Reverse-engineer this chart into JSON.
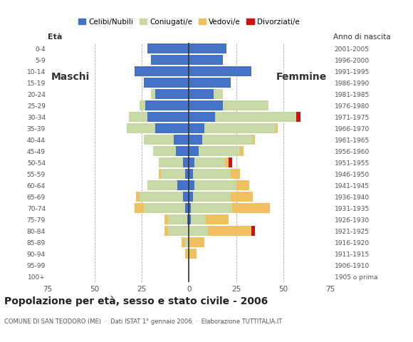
{
  "age_groups": [
    "100+",
    "95-99",
    "90-94",
    "85-89",
    "80-84",
    "75-79",
    "70-74",
    "65-69",
    "60-64",
    "55-59",
    "50-54",
    "45-49",
    "40-44",
    "35-39",
    "30-34",
    "25-29",
    "20-24",
    "15-19",
    "10-14",
    "5-9",
    "0-4"
  ],
  "birth_years": [
    "1905 o prima",
    "1906-1910",
    "1911-1915",
    "1916-1920",
    "1921-1925",
    "1926-1930",
    "1931-1935",
    "1936-1940",
    "1941-1945",
    "1946-1950",
    "1951-1955",
    "1956-1960",
    "1961-1965",
    "1966-1970",
    "1971-1975",
    "1976-1980",
    "1981-1985",
    "1986-1990",
    "1991-1995",
    "1996-2000",
    "2001-2005"
  ],
  "males_celibi": [
    0,
    0,
    0,
    0,
    0,
    1,
    2,
    3,
    6,
    2,
    3,
    7,
    8,
    18,
    22,
    23,
    18,
    24,
    29,
    20,
    22
  ],
  "males_coniugati": [
    0,
    0,
    1,
    2,
    11,
    10,
    22,
    23,
    16,
    13,
    13,
    12,
    16,
    15,
    10,
    3,
    2,
    0,
    0,
    0,
    0
  ],
  "males_vedovi": [
    0,
    0,
    1,
    2,
    2,
    2,
    5,
    2,
    0,
    1,
    0,
    0,
    0,
    0,
    0,
    0,
    0,
    0,
    0,
    0,
    0
  ],
  "males_divorziati": [
    0,
    0,
    0,
    0,
    0,
    0,
    0,
    0,
    0,
    0,
    0,
    0,
    0,
    0,
    0,
    0,
    0,
    0,
    0,
    0,
    0
  ],
  "females_nubili": [
    0,
    0,
    0,
    0,
    0,
    1,
    1,
    2,
    3,
    2,
    3,
    5,
    7,
    8,
    14,
    18,
    13,
    22,
    33,
    18,
    20
  ],
  "females_coniugate": [
    0,
    0,
    0,
    0,
    10,
    8,
    22,
    20,
    22,
    20,
    16,
    22,
    27,
    38,
    43,
    24,
    5,
    0,
    0,
    0,
    0
  ],
  "females_vedove": [
    0,
    0,
    4,
    8,
    23,
    12,
    20,
    12,
    7,
    5,
    2,
    2,
    1,
    1,
    0,
    0,
    0,
    0,
    0,
    0,
    0
  ],
  "females_divorziate": [
    0,
    0,
    0,
    0,
    2,
    0,
    0,
    0,
    0,
    0,
    2,
    0,
    0,
    0,
    2,
    0,
    0,
    0,
    0,
    0,
    0
  ],
  "color_celibi": "#4472c4",
  "color_coniugati": "#c8d9a5",
  "color_vedovi": "#f0c060",
  "color_divorziati": "#cc1111",
  "legend_labels": [
    "Celibi/Nubili",
    "Coniugati/e",
    "Vedovi/e",
    "Divorziati/e"
  ],
  "title": "Popolazione per età, sesso e stato civile - 2006",
  "subtitle": "COMUNE DI SAN TEODORO (ME)  ·  Dati ISTAT 1° gennaio 2006  ·  Elaborazione TUTTITALIA.IT",
  "label_maschi": "Maschi",
  "label_femmine": "Femmine",
  "label_eta": "Età",
  "label_anno": "Anno di nascita",
  "xlim": 75
}
